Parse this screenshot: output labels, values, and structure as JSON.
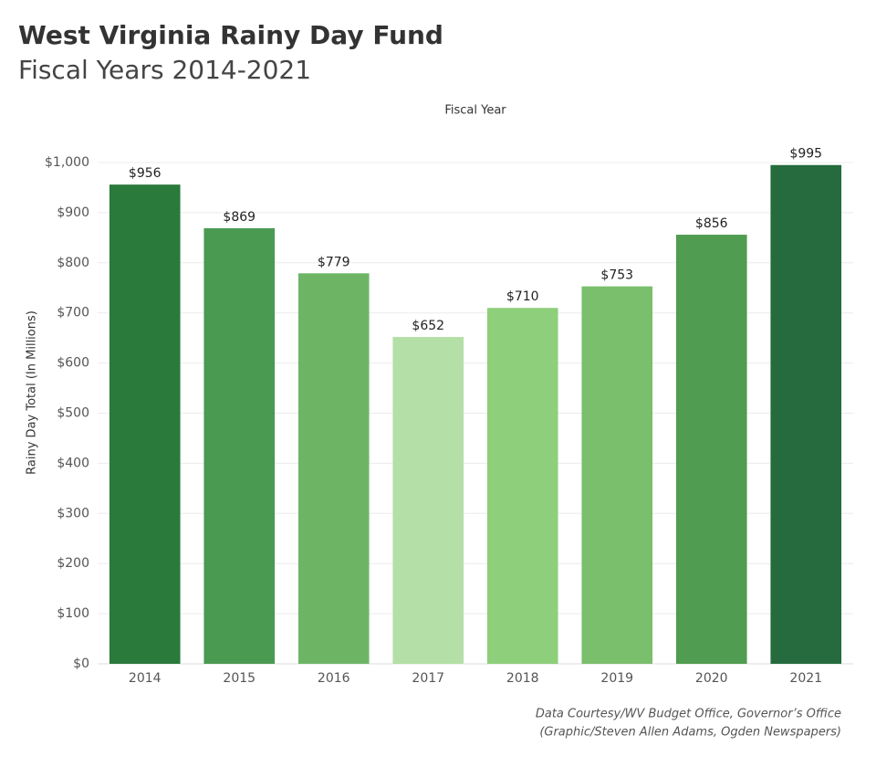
{
  "chart_data": {
    "type": "bar",
    "title": "West Virginia Rainy Day Fund",
    "subtitle": "Fiscal Years 2014-2021",
    "x_label": "Fiscal Year",
    "y_label": "Rainy Day Total (In Millions)",
    "categories": [
      "2014",
      "2015",
      "2016",
      "2017",
      "2018",
      "2019",
      "2020",
      "2021"
    ],
    "values": [
      956,
      869,
      779,
      652,
      710,
      753,
      856,
      995
    ],
    "value_labels": [
      "$956",
      "$869",
      "$779",
      "$652",
      "$710",
      "$753",
      "$856",
      "$995"
    ],
    "colors": [
      "#2a7a3b",
      "#4a9a52",
      "#6db565",
      "#b4dfa6",
      "#8ecf7c",
      "#7abf6c",
      "#509c50",
      "#256b3d"
    ],
    "ylim": [
      0,
      1000
    ],
    "yticks": [
      {
        "value": 0,
        "label": "$0"
      },
      {
        "value": 100,
        "label": "$100"
      },
      {
        "value": 200,
        "label": "$200"
      },
      {
        "value": 300,
        "label": "$300"
      },
      {
        "value": 400,
        "label": "$400"
      },
      {
        "value": 500,
        "label": "$500"
      },
      {
        "value": 600,
        "label": "$600"
      },
      {
        "value": 700,
        "label": "$700"
      },
      {
        "value": 800,
        "label": "$800"
      },
      {
        "value": 900,
        "label": "$900"
      },
      {
        "value": 1000,
        "label": "$1,000"
      }
    ],
    "grid": true,
    "notes": [
      "Data Courtesy/WV Budget Office, Governor’s Office",
      "(Graphic/Steven Allen Adams, Ogden Newspapers)"
    ]
  }
}
